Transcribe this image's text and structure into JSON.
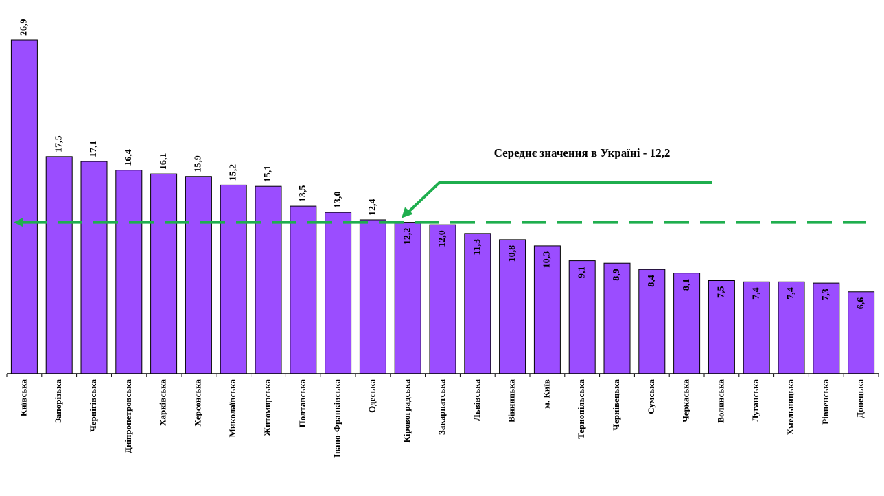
{
  "chart_data": {
    "type": "bar",
    "categories": [
      "Київська",
      "Запорізька",
      "Чернігівська",
      "Дніпропетровська",
      "Харківська",
      "Херсонська",
      "Миколаївська",
      "Житомирська",
      "Полтавська",
      "Івано-Франківська",
      "Одеська",
      "Кіровоградська",
      "Закарпатська",
      "Львівська",
      "Вінницька",
      "м. Київ",
      "Тернопільська",
      "Чернівецька",
      "Сумська",
      "Черкаська",
      "Волинська",
      "Луганська",
      "Хмельницька",
      "Рівненська",
      "Донецька"
    ],
    "values": [
      26.9,
      17.5,
      17.1,
      16.4,
      16.1,
      15.9,
      15.2,
      15.1,
      13.5,
      13.0,
      12.4,
      12.2,
      12.0,
      11.3,
      10.8,
      10.3,
      9.1,
      8.9,
      8.4,
      8.1,
      7.5,
      7.4,
      7.4,
      7.3,
      6.6
    ],
    "value_labels": [
      "26,9",
      "17,5",
      "17,1",
      "16,4",
      "16,1",
      "15,9",
      "15,2",
      "15,1",
      "13,5",
      "13,0",
      "12,4",
      "12,2",
      "12,0",
      "11,3",
      "10,8",
      "10,3",
      "9,1",
      "8,9",
      "8,4",
      "8,1",
      "7,5",
      "7,4",
      "7,4",
      "7,3",
      "6,6"
    ],
    "color": "#9b4dff",
    "average": 12.2,
    "average_color": "#1fae4e",
    "annotation": "Середнє значення в Україні - 12,2",
    "ylim": [
      0,
      27
    ]
  }
}
